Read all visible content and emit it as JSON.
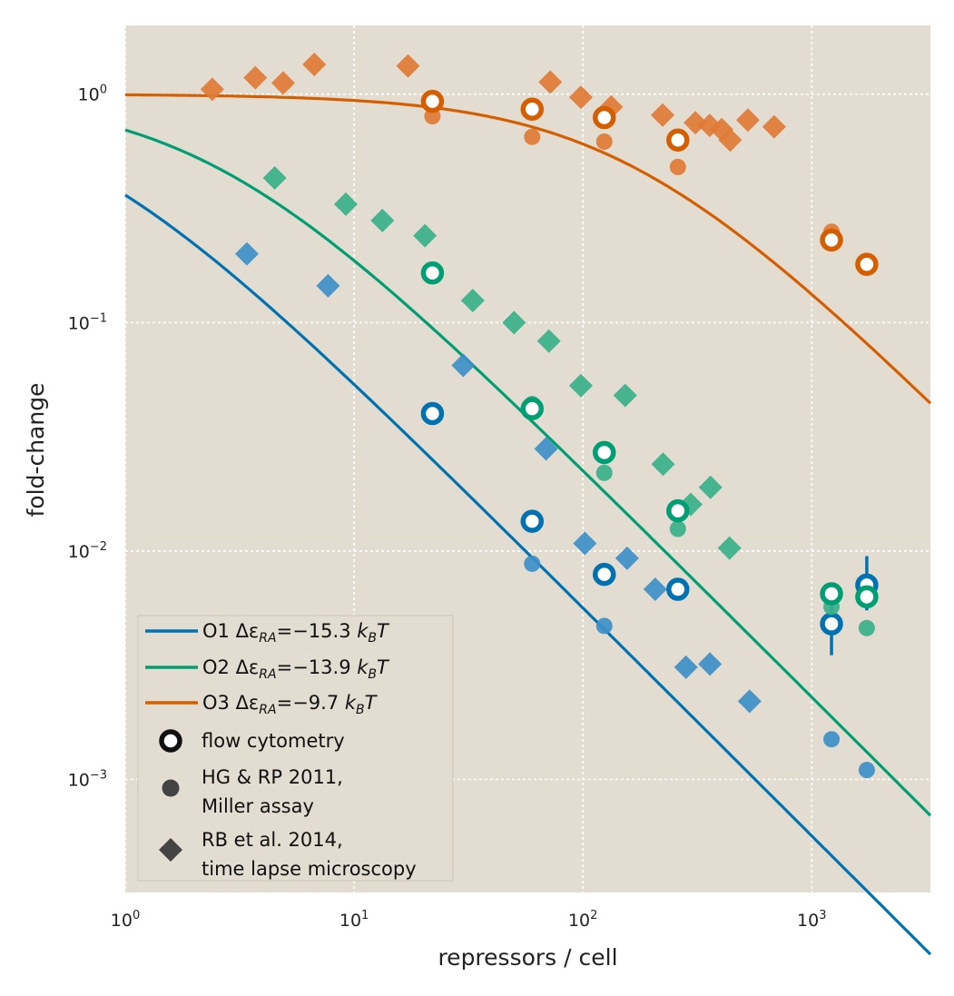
{
  "chart_data": {
    "type": "scatter",
    "xlabel": "repressors / cell",
    "ylabel": "fold-change",
    "xscale": "log",
    "yscale": "log",
    "xlim": [
      1,
      3300
    ],
    "ylim": [
      0.00032,
      2.0
    ],
    "grid": true,
    "legend_position": "bottom-left",
    "x_ticks": [
      {
        "base": "10",
        "exp": "0",
        "value": 1
      },
      {
        "base": "10",
        "exp": "1",
        "value": 10
      },
      {
        "base": "10",
        "exp": "2",
        "value": 100
      },
      {
        "base": "10",
        "exp": "3",
        "value": 1000
      }
    ],
    "y_ticks": [
      {
        "base": "10",
        "exp": "0",
        "value": 1
      },
      {
        "base": "10",
        "exp": "−1",
        "value": 0.1
      },
      {
        "base": "10",
        "exp": "−2",
        "value": 0.01
      },
      {
        "base": "10",
        "exp": "−3",
        "value": 0.001
      }
    ],
    "series": [
      {
        "operator": "O1",
        "legend_prefix": "O1 Δε",
        "legend_sub": "RA",
        "legend_value": "=−15.3",
        "legend_unit": "k",
        "legend_unit_sub": "B",
        "legend_unit_tail": "T",
        "color": "#0072B2",
        "light_color": "#3d8fc7",
        "binding_energy": -15.3,
        "flow_cytometry": [
          [
            22,
            0.04
          ],
          [
            60,
            0.0135
          ],
          [
            124,
            0.0079
          ],
          [
            260,
            0.0068
          ],
          [
            1220,
            0.0048
          ],
          [
            1740,
            0.0071
          ]
        ],
        "flow_errorbars": [
          [
            1220,
            0.0035,
            0.0062
          ],
          [
            1740,
            0.0055,
            0.0095
          ]
        ],
        "miller_assay": [
          [
            60,
            0.0088
          ],
          [
            124,
            0.0047
          ],
          [
            1220,
            0.0015
          ],
          [
            1740,
            0.0011
          ]
        ],
        "time_lapse": [
          [
            3.4,
            0.2
          ],
          [
            7.7,
            0.145
          ],
          [
            30,
            0.065
          ],
          [
            69,
            0.028
          ],
          [
            102,
            0.0108
          ],
          [
            156,
            0.0093
          ],
          [
            207,
            0.0068
          ],
          [
            282,
            0.0031
          ],
          [
            359,
            0.0032
          ],
          [
            535,
            0.0022
          ]
        ]
      },
      {
        "operator": "O2",
        "legend_prefix": "O2 Δε",
        "legend_sub": "RA",
        "legend_value": "=−13.9",
        "legend_unit": "k",
        "legend_unit_sub": "B",
        "legend_unit_tail": "T",
        "color": "#009E73",
        "light_color": "#3ab08a",
        "binding_energy": -13.9,
        "flow_cytometry": [
          [
            22,
            0.165
          ],
          [
            60,
            0.042
          ],
          [
            124,
            0.027
          ],
          [
            260,
            0.015
          ],
          [
            1220,
            0.0065
          ],
          [
            1740,
            0.0063
          ]
        ],
        "flow_errorbars": [],
        "miller_assay": [
          [
            22,
            0.17
          ],
          [
            60,
            0.044
          ],
          [
            124,
            0.022
          ],
          [
            260,
            0.0125
          ],
          [
            1220,
            0.0057
          ],
          [
            1740,
            0.0046
          ]
        ],
        "time_lapse": [
          [
            4.5,
            0.43
          ],
          [
            9.2,
            0.33
          ],
          [
            13.3,
            0.28
          ],
          [
            20.4,
            0.24
          ],
          [
            33,
            0.125
          ],
          [
            50,
            0.1
          ],
          [
            71,
            0.083
          ],
          [
            98,
            0.053
          ],
          [
            153,
            0.048
          ],
          [
            224,
            0.024
          ],
          [
            296,
            0.016
          ],
          [
            361,
            0.019
          ],
          [
            437,
            0.0103
          ]
        ]
      },
      {
        "operator": "O3",
        "legend_prefix": "O3 Δε",
        "legend_sub": "RA",
        "legend_value": "=−9.7",
        "legend_unit": "k",
        "legend_unit_sub": "B",
        "legend_unit_tail": "T",
        "color": "#D55E00",
        "light_color": "#e07a35",
        "binding_energy": -9.7,
        "flow_cytometry": [
          [
            22,
            0.93
          ],
          [
            60,
            0.86
          ],
          [
            124,
            0.79
          ],
          [
            260,
            0.63
          ],
          [
            1220,
            0.23
          ],
          [
            1740,
            0.18
          ]
        ],
        "flow_errorbars": [],
        "miller_assay": [
          [
            22,
            0.8
          ],
          [
            60,
            0.65
          ],
          [
            124,
            0.62
          ],
          [
            260,
            0.48
          ],
          [
            1220,
            0.25
          ]
        ],
        "time_lapse": [
          [
            2.4,
            1.05
          ],
          [
            3.7,
            1.18
          ],
          [
            4.9,
            1.12
          ],
          [
            6.7,
            1.35
          ],
          [
            17.2,
            1.33
          ],
          [
            72,
            1.13
          ],
          [
            98,
            0.97
          ],
          [
            133,
            0.88
          ],
          [
            223,
            0.81
          ],
          [
            310,
            0.75
          ],
          [
            358,
            0.73
          ],
          [
            404,
            0.7
          ],
          [
            440,
            0.63
          ],
          [
            526,
            0.77
          ],
          [
            685,
            0.72
          ]
        ]
      }
    ],
    "marker_legend": [
      {
        "marker": "ring",
        "label_lines": [
          "flow cytometry"
        ]
      },
      {
        "marker": "dot",
        "label_lines": [
          "HG & RP 2011,",
          "Miller assay"
        ]
      },
      {
        "marker": "diamond",
        "label_lines": [
          "RB et al. 2014,",
          "time lapse microscopy"
        ]
      }
    ],
    "legend_marker_color": "#111111"
  },
  "colors": {
    "plot_background": "#e3dcd0",
    "grid": "#ffffff",
    "legend_background": "#e3dcd0",
    "legend_border": "#cfc7b8"
  }
}
